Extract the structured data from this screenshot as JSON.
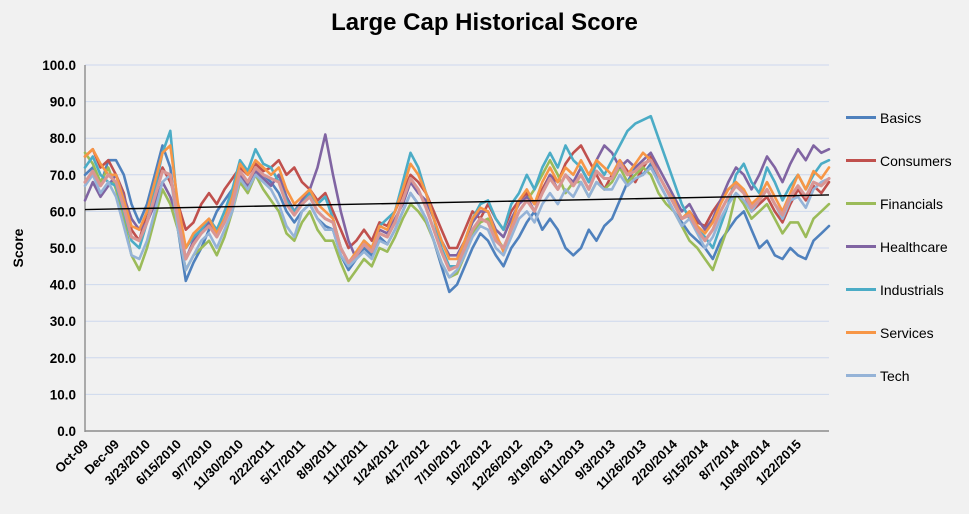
{
  "chart_data": {
    "type": "line",
    "title": "Large Cap Historical Score",
    "xlabel": "",
    "ylabel": "Score",
    "ylim": [
      0,
      100
    ],
    "ytick_step": 10,
    "ytick_format": "one_decimal",
    "grid": "horizontal",
    "legend_position": "right",
    "background_color": "#F1F1F1",
    "gridline_color": "#CDD8EE",
    "axis_color": "#8C8C8C",
    "points_per_label": 4,
    "points_per_series": 97,
    "categories": [
      "Oct-09",
      "Dec-09",
      "3/23/2010",
      "6/15/2010",
      "9/7/2010",
      "11/30/2010",
      "2/22/2011",
      "5/17/2011",
      "8/9/2011",
      "11/1/2011",
      "1/24/2012",
      "4/17/2012",
      "7/10/2012",
      "10/2/2012",
      "12/26/2012",
      "3/19/2013",
      "6/11/2013",
      "9/3/2013",
      "11/26/2013",
      "2/20/2014",
      "5/15/2014",
      "8/7/2014",
      "10/30/2014",
      "1/22/2015"
    ],
    "series": [
      {
        "name": "Basics",
        "color": "#4F81BD",
        "width": 2.6,
        "values": [
          70,
          72,
          67,
          74,
          74,
          70,
          62,
          57,
          62,
          70,
          78,
          72,
          55,
          41,
          46,
          50,
          55,
          60,
          63,
          66,
          70,
          68,
          72,
          70,
          68,
          65,
          60,
          57,
          60,
          62,
          58,
          56,
          55,
          48,
          44,
          47,
          50,
          48,
          53,
          51,
          55,
          60,
          65,
          62,
          58,
          52,
          45,
          38,
          40,
          45,
          50,
          54,
          52,
          48,
          45,
          50,
          53,
          57,
          60,
          55,
          58,
          55,
          50,
          48,
          50,
          55,
          52,
          56,
          58,
          63,
          68,
          72,
          70,
          73,
          68,
          64,
          60,
          57,
          54,
          52,
          50,
          47,
          52,
          55,
          58,
          60,
          55,
          50,
          52,
          48,
          47,
          50,
          48,
          47,
          52,
          54,
          56
        ]
      },
      {
        "name": "Consumers",
        "color": "#C0504D",
        "width": 2.6,
        "values": [
          75,
          77,
          72,
          74,
          70,
          65,
          55,
          52,
          60,
          66,
          72,
          68,
          62,
          55,
          57,
          62,
          65,
          62,
          66,
          69,
          72,
          70,
          73,
          71,
          72,
          74,
          70,
          72,
          68,
          66,
          63,
          65,
          60,
          55,
          50,
          52,
          55,
          52,
          57,
          56,
          60,
          65,
          70,
          68,
          65,
          60,
          55,
          50,
          50,
          55,
          60,
          58,
          62,
          58,
          55,
          60,
          63,
          65,
          62,
          66,
          70,
          68,
          73,
          76,
          78,
          74,
          70,
          66,
          70,
          74,
          71,
          68,
          72,
          75,
          70,
          66,
          62,
          58,
          60,
          57,
          56,
          60,
          63,
          66,
          68,
          65,
          60,
          62,
          64,
          60,
          57,
          62,
          66,
          63,
          67,
          65,
          68
        ]
      },
      {
        "name": "Financials",
        "color": "#9BBB59",
        "width": 2.6,
        "values": [
          76,
          73,
          68,
          72,
          66,
          58,
          48,
          44,
          50,
          58,
          66,
          62,
          55,
          44,
          48,
          50,
          52,
          48,
          53,
          60,
          68,
          65,
          70,
          66,
          63,
          60,
          54,
          52,
          57,
          60,
          55,
          52,
          52,
          46,
          41,
          44,
          47,
          45,
          50,
          49,
          53,
          58,
          62,
          60,
          57,
          52,
          46,
          42,
          43,
          48,
          54,
          57,
          58,
          53,
          50,
          55,
          60,
          63,
          66,
          70,
          74,
          70,
          65,
          68,
          68,
          64,
          68,
          66,
          68,
          72,
          68,
          70,
          72,
          70,
          65,
          62,
          60,
          56,
          52,
          50,
          47,
          44,
          50,
          56,
          65,
          62,
          58,
          60,
          62,
          58,
          54,
          57,
          57,
          53,
          58,
          60,
          62
        ]
      },
      {
        "name": "Healthcare",
        "color": "#8064A2",
        "width": 2.6,
        "values": [
          63,
          68,
          64,
          67,
          70,
          64,
          58,
          55,
          57,
          62,
          68,
          64,
          58,
          47,
          52,
          55,
          57,
          54,
          58,
          63,
          70,
          67,
          71,
          69,
          67,
          70,
          64,
          60,
          63,
          66,
          72,
          81,
          70,
          60,
          52,
          47,
          52,
          50,
          55,
          54,
          58,
          62,
          68,
          65,
          63,
          58,
          52,
          48,
          48,
          52,
          57,
          60,
          60,
          55,
          53,
          58,
          62,
          64,
          60,
          65,
          70,
          66,
          70,
          68,
          72,
          68,
          74,
          78,
          76,
          72,
          74,
          72,
          74,
          76,
          72,
          68,
          64,
          60,
          62,
          58,
          55,
          58,
          63,
          68,
          72,
          70,
          66,
          70,
          75,
          72,
          68,
          73,
          77,
          74,
          78,
          76,
          77
        ]
      },
      {
        "name": "Industrials",
        "color": "#4BACC6",
        "width": 2.6,
        "values": [
          72,
          75,
          70,
          68,
          67,
          60,
          52,
          50,
          57,
          66,
          76,
          82,
          60,
          50,
          53,
          55,
          58,
          55,
          60,
          66,
          74,
          71,
          77,
          73,
          72,
          68,
          63,
          60,
          62,
          65,
          62,
          64,
          58,
          50,
          46,
          48,
          52,
          50,
          56,
          58,
          60,
          68,
          76,
          72,
          65,
          58,
          50,
          45,
          45,
          52,
          58,
          62,
          63,
          58,
          55,
          62,
          65,
          70,
          66,
          72,
          76,
          72,
          78,
          74,
          72,
          68,
          73,
          70,
          74,
          78,
          82,
          84,
          85,
          86,
          80,
          74,
          68,
          62,
          58,
          55,
          53,
          50,
          56,
          62,
          70,
          73,
          68,
          65,
          72,
          68,
          63,
          67,
          70,
          66,
          70,
          73,
          74
        ]
      },
      {
        "name": "Services",
        "color": "#F79646",
        "width": 2.6,
        "values": [
          75,
          77,
          73,
          70,
          70,
          63,
          56,
          55,
          60,
          68,
          76,
          78,
          62,
          50,
          54,
          56,
          58,
          54,
          58,
          64,
          73,
          70,
          74,
          72,
          70,
          72,
          66,
          62,
          64,
          66,
          62,
          60,
          58,
          50,
          46,
          49,
          52,
          50,
          56,
          55,
          60,
          66,
          73,
          70,
          65,
          58,
          52,
          47,
          47,
          52,
          58,
          61,
          60,
          54,
          49,
          56,
          63,
          66,
          62,
          68,
          72,
          68,
          72,
          70,
          74,
          70,
          74,
          72,
          70,
          74,
          70,
          73,
          76,
          74,
          70,
          66,
          63,
          58,
          60,
          56,
          54,
          57,
          62,
          66,
          68,
          66,
          62,
          64,
          68,
          64,
          60,
          65,
          70,
          66,
          71,
          69,
          72
        ]
      },
      {
        "name": "Tech",
        "color": "#95B3D7",
        "width": 2.6,
        "values": [
          67,
          70,
          65,
          68,
          64,
          56,
          48,
          47,
          52,
          60,
          68,
          70,
          55,
          44,
          48,
          52,
          54,
          50,
          55,
          60,
          69,
          66,
          70,
          68,
          66,
          62,
          56,
          53,
          60,
          62,
          58,
          55,
          55,
          48,
          45,
          47,
          49,
          47,
          52,
          51,
          55,
          60,
          65,
          62,
          58,
          52,
          46,
          42,
          44,
          48,
          53,
          56,
          55,
          50,
          48,
          53,
          58,
          60,
          57,
          62,
          65,
          62,
          66,
          64,
          68,
          64,
          68,
          66,
          66,
          70,
          67,
          69,
          70,
          72,
          68,
          64,
          60,
          56,
          58,
          54,
          50,
          53,
          58,
          62,
          65,
          63,
          60,
          63,
          66,
          62,
          58,
          63,
          64,
          61,
          66,
          68,
          69
        ]
      },
      {
        "name": "",
        "color": "#D99694",
        "width": 3.1,
        "values": [
          68,
          71,
          67,
          70,
          68,
          61,
          53,
          52,
          57,
          64,
          71,
          70,
          58,
          47,
          51,
          54,
          56,
          53,
          57,
          62,
          71,
          68,
          72,
          70,
          69,
          68,
          62,
          59,
          62,
          64,
          60,
          58,
          57,
          50,
          46,
          48,
          51,
          49,
          54,
          53,
          57,
          63,
          69,
          66,
          61,
          55,
          49,
          44,
          45,
          50,
          55,
          58,
          57,
          52,
          50,
          55,
          60,
          63,
          60,
          65,
          69,
          66,
          70,
          67,
          70,
          66,
          71,
          69,
          69,
          73,
          70,
          71,
          73,
          74,
          70,
          66,
          62,
          58,
          59,
          55,
          52,
          55,
          60,
          64,
          67,
          65,
          61,
          63,
          66,
          62,
          59,
          64,
          67,
          64,
          68,
          67,
          69
        ]
      }
    ],
    "trendline": {
      "type": "linear",
      "start": 60.5,
      "end": 64.5,
      "color": "#000000"
    }
  }
}
